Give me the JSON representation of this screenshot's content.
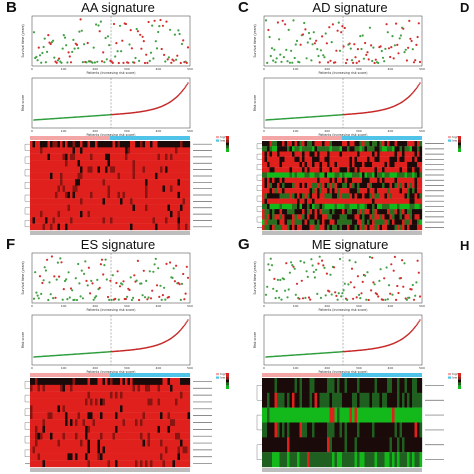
{
  "figure": {
    "panels": [
      {
        "letter": "B",
        "title": "AA signature",
        "scatter_ylabel": "Survival time (years)",
        "scatter_xlabel": "Patients (increasing risk score)",
        "risk_ylabel": "Risk score",
        "risk_xlabel": "Patients (increasing risk score)",
        "x_ticks": [
          "0",
          "100",
          "200",
          "300",
          "400",
          "500"
        ],
        "legend": [
          "high",
          "low"
        ],
        "n_genes": 14,
        "heat_style": "red"
      },
      {
        "letter": "C",
        "title": "AD signature",
        "scatter_ylabel": "Survival time (years)",
        "scatter_xlabel": "Patients (increasing risk score)",
        "risk_ylabel": "Risk score",
        "risk_xlabel": "Patients (increasing risk score)",
        "x_ticks": [
          "0",
          "100",
          "200",
          "300",
          "400",
          "500"
        ],
        "legend": [
          "high",
          "low"
        ],
        "n_genes": 17,
        "heat_style": "mixed"
      },
      {
        "letter": "F",
        "title": "ES signature",
        "scatter_ylabel": "Survival time (years)",
        "scatter_xlabel": "Patients (increasing risk score)",
        "risk_ylabel": "Risk score",
        "risk_xlabel": "Patients (increasing risk score)",
        "x_ticks": [
          "0",
          "100",
          "200",
          "300",
          "400",
          "500"
        ],
        "legend": [
          "high",
          "low"
        ],
        "n_genes": 13,
        "heat_style": "red"
      },
      {
        "letter": "G",
        "title": "ME signature",
        "scatter_ylabel": "Survival time (years)",
        "scatter_xlabel": "Patients (increasing risk score)",
        "risk_ylabel": "Risk score",
        "risk_xlabel": "Patients (increasing risk score)",
        "x_ticks": [
          "0",
          "100",
          "200",
          "300",
          "400",
          "500"
        ],
        "legend": [
          "high",
          "low"
        ],
        "n_genes": 6,
        "heat_style": "green"
      }
    ],
    "edge_letters": [
      "D",
      "H"
    ],
    "colors": {
      "dead": "#d32f2f",
      "alive": "#43a047",
      "risk_high": "#c62828",
      "risk_low": "#2e9e3e",
      "heat_red": "#e0201c",
      "heat_green": "#13b81b",
      "heat_black": "#1a0a0a",
      "bar_high": "#f4a6a6",
      "bar_low": "#4fc3e8"
    }
  }
}
